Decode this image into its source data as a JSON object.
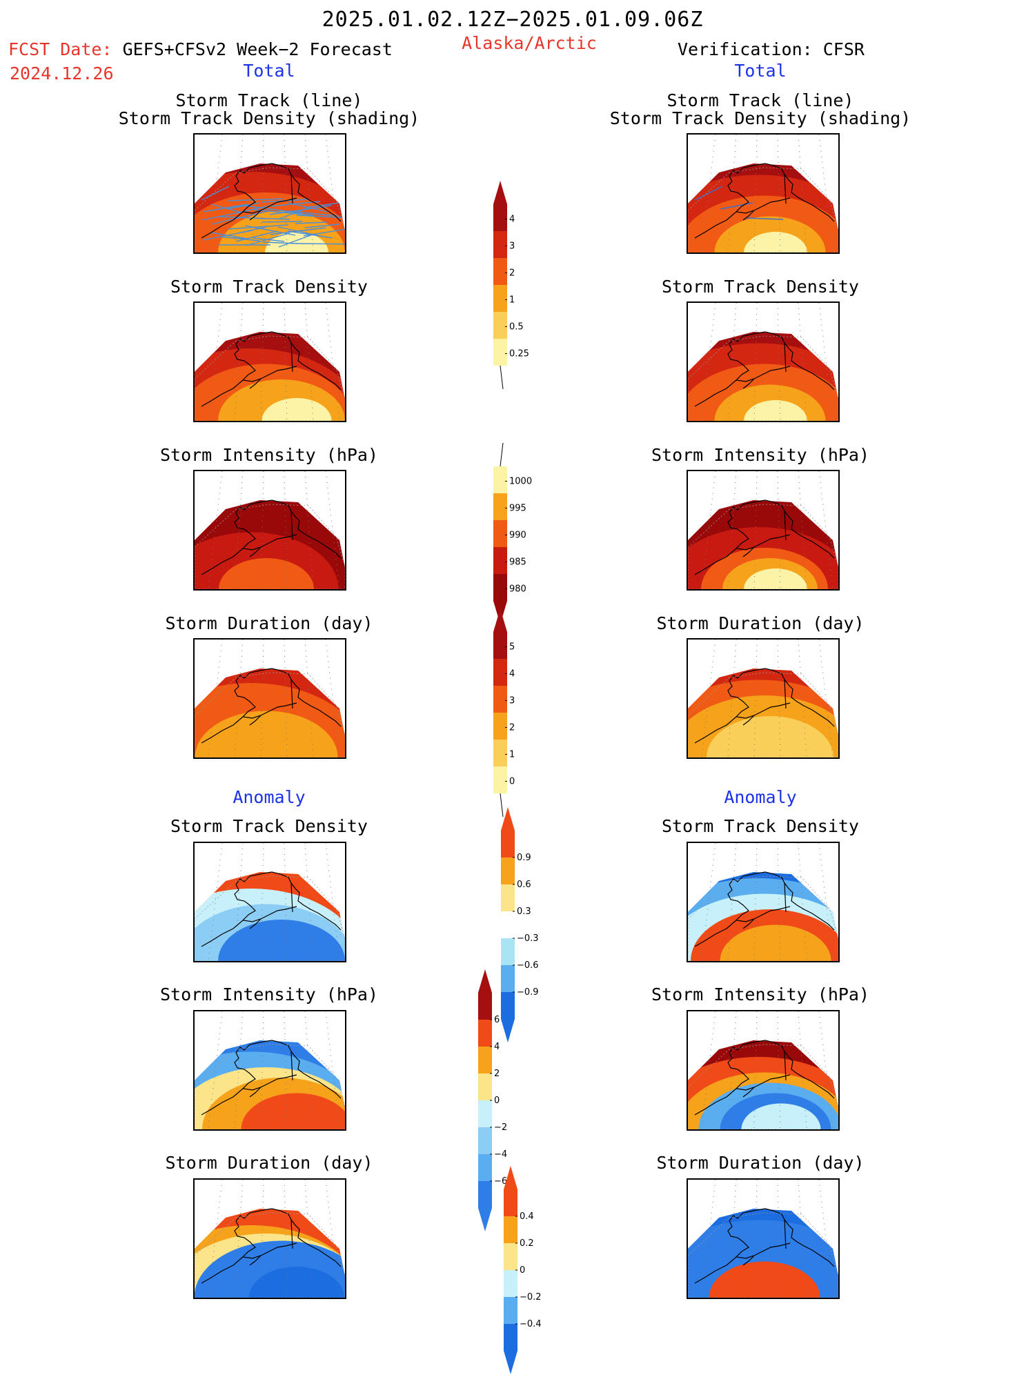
{
  "header": {
    "period": "2025.01.02.12Z−2025.01.09.06Z",
    "region": "Alaska/Arctic",
    "fcst_prefix": "FCST Date:",
    "fcst_model": "GEFS+CFSv2 Week−2 Forecast",
    "fcst_date": "2024.12.26",
    "verification": "Verification: CFSR",
    "left_total": "Total",
    "right_total": "Total",
    "left_anomaly": "Anomaly",
    "right_anomaly": "Anomaly"
  },
  "panel_titles": {
    "track_line": "Storm Track (line)",
    "track_shading": "Storm Track Density (shading)",
    "density": "Storm Track Density",
    "intensity": "Storm Intensity (hPa)",
    "duration": "Storm Duration (day)"
  },
  "colorbars": {
    "density_total": {
      "labels": [
        "4",
        "3",
        "2",
        "1",
        "0.5",
        "0.25"
      ],
      "colors": [
        "#a50f0f",
        "#d42712",
        "#f05a14",
        "#f7a21b",
        "#f9cf5a",
        "#fdf3a6"
      ]
    },
    "intensity_total": {
      "labels": [
        "1000",
        "995",
        "990",
        "985",
        "980"
      ],
      "colors": [
        "#fdf3a6",
        "#f7a21b",
        "#f05a14",
        "#c81a10",
        "#9a0909"
      ]
    },
    "duration_total": {
      "labels": [
        "5",
        "4",
        "3",
        "2",
        "1",
        "0"
      ],
      "colors": [
        "#a50f0f",
        "#d42712",
        "#f05a14",
        "#f7a21b",
        "#f9cf5a",
        "#fdf3a6"
      ]
    },
    "density_anom": {
      "labels": [
        "0.9",
        "0.6",
        "0.3",
        "−0.3",
        "−0.6",
        "−0.9"
      ],
      "colors": [
        "#f04a18",
        "#f7a21b",
        "#fbe48a",
        "#ffffff",
        "#a8e4f4",
        "#5aaef0",
        "#1b6de0"
      ]
    },
    "intensity_anom": {
      "labels": [
        "6",
        "4",
        "2",
        "0",
        "−2",
        "−4",
        "−6"
      ],
      "colors": [
        "#a50f0f",
        "#f04a18",
        "#f7a21b",
        "#fbe48a",
        "#c8f0fa",
        "#8ccdf5",
        "#5aaef0",
        "#2f7ee8"
      ]
    },
    "duration_anom": {
      "labels": [
        "0.4",
        "0.2",
        "0",
        "−0.2",
        "−0.4"
      ],
      "colors": [
        "#f04a18",
        "#f7a21b",
        "#fbe48a",
        "#c8f0fa",
        "#5aaef0",
        "#1b6de0"
      ]
    }
  },
  "panels": {
    "fc_track": {
      "colors": [
        "#a50f0f",
        "#d42712",
        "#f05a14",
        "#f7a21b",
        "#fdf3a6"
      ]
    },
    "fc_density": {
      "colors": [
        "#a50f0f",
        "#d42712",
        "#f05a14",
        "#f7a21b",
        "#fdf3a6"
      ]
    },
    "fc_intensity": {
      "colors": [
        "#9a0909",
        "#c81a10",
        "#f05a14"
      ]
    },
    "fc_duration": {
      "colors": [
        "#d42712",
        "#f05a14",
        "#f7a21b"
      ]
    },
    "fc_density_anom": {
      "colors": [
        "#f04a18",
        "#c8f0fa",
        "#8ccdf5",
        "#2f7ee8"
      ]
    },
    "fc_intensity_anom": {
      "colors": [
        "#2f7ee8",
        "#5aaef0",
        "#fbe48a",
        "#f7a21b",
        "#f04a18"
      ]
    },
    "fc_duration_anom": {
      "colors": [
        "#f04a18",
        "#f7a21b",
        "#fbe48a",
        "#2f7ee8",
        "#1b6de0"
      ]
    },
    "vf_track": {
      "colors": [
        "#a50f0f",
        "#d42712",
        "#f05a14",
        "#f7a21b",
        "#fdf3a6"
      ]
    },
    "vf_density": {
      "colors": [
        "#a50f0f",
        "#d42712",
        "#f05a14",
        "#f7a21b",
        "#fdf3a6"
      ]
    },
    "vf_intensity": {
      "colors": [
        "#9a0909",
        "#c81a10",
        "#f05a14",
        "#f7a21b",
        "#fdf3a6"
      ]
    },
    "vf_duration": {
      "colors": [
        "#d42712",
        "#f05a14",
        "#f7a21b",
        "#f9cf5a"
      ]
    },
    "vf_density_anom": {
      "colors": [
        "#1b6de0",
        "#5aaef0",
        "#c8f0fa",
        "#f04a18",
        "#f7a21b"
      ]
    },
    "vf_intensity_anom": {
      "colors": [
        "#9a0909",
        "#f04a18",
        "#f7a21b",
        "#5aaef0",
        "#2f7ee8",
        "#c8f0fa"
      ]
    },
    "vf_duration_anom": {
      "colors": [
        "#1b6de0",
        "#2f7ee8",
        "#f04a18"
      ]
    }
  }
}
